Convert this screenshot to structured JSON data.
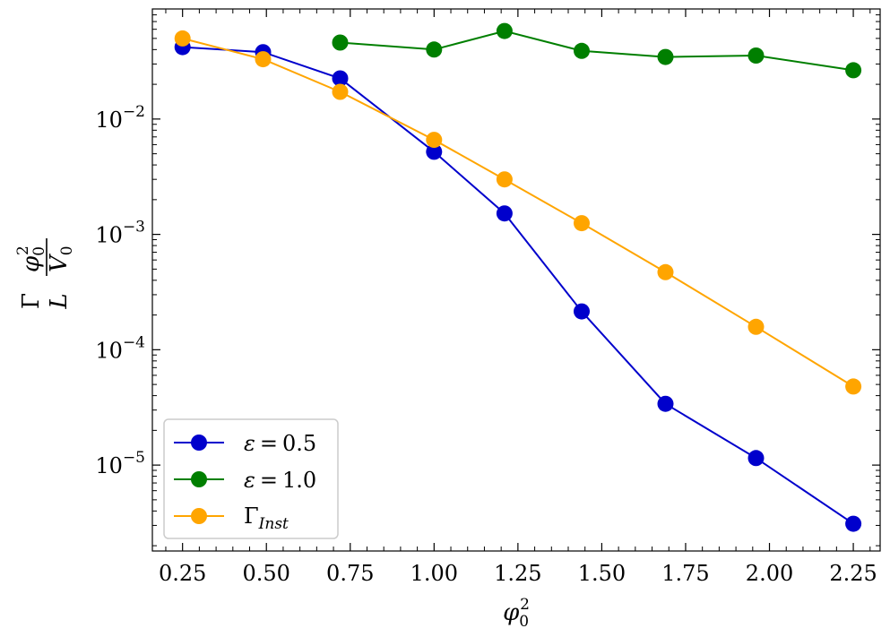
{
  "chart_data": {
    "type": "line",
    "title": "",
    "xlabel": "φ₀²",
    "ylabel": "Γ φ₀² / L V₀",
    "ylabel_parts": {
      "gamma": "Γ",
      "phi": "φ",
      "sub0": "0",
      "sup2": "2",
      "L": "L",
      "V": "V"
    },
    "yscale": "log",
    "xlim": [
      0.16,
      2.33
    ],
    "ylim": [
      1.8e-06,
      0.09
    ],
    "x_ticks": [
      0.25,
      0.5,
      0.75,
      1.0,
      1.25,
      1.5,
      1.75,
      2.0,
      2.25
    ],
    "x_tick_labels": [
      "0.25",
      "0.50",
      "0.75",
      "1.00",
      "1.25",
      "1.50",
      "1.75",
      "2.00",
      "2.25"
    ],
    "y_ticks": [
      {
        "value": 0.01,
        "base": "10",
        "exp": "−2"
      },
      {
        "value": 0.001,
        "base": "10",
        "exp": "−3"
      },
      {
        "value": 0.0001,
        "base": "10",
        "exp": "−4"
      },
      {
        "value": 1e-05,
        "base": "10",
        "exp": "−5"
      }
    ],
    "legend_position": "lower-left",
    "series": [
      {
        "name": "eps-05",
        "label": "ε = 0.5",
        "label_parts": {
          "sym": "ε",
          "eq": "=",
          "val": "0.5"
        },
        "color": "#0000cc",
        "x": [
          0.25,
          0.49,
          0.72,
          1.0,
          1.21,
          1.44,
          1.69,
          1.96,
          2.25
        ],
        "y": [
          0.042,
          0.038,
          0.0225,
          0.0052,
          0.00152,
          0.000215,
          3.4e-05,
          1.15e-05,
          3.1e-06
        ]
      },
      {
        "name": "eps-10",
        "label": "ε = 1.0",
        "label_parts": {
          "sym": "ε",
          "eq": "=",
          "val": "1.0"
        },
        "color": "#007f00",
        "x": [
          0.72,
          1.0,
          1.21,
          1.44,
          1.69,
          1.96,
          2.25
        ],
        "y": [
          0.046,
          0.04,
          0.058,
          0.039,
          0.0345,
          0.0355,
          0.0265
        ]
      },
      {
        "name": "gamma-inst",
        "label": "Γ Inst",
        "label_parts": {
          "sym": "Γ",
          "sub": "Inst"
        },
        "color": "#ffa500",
        "x": [
          0.25,
          0.49,
          0.72,
          1.0,
          1.21,
          1.44,
          1.69,
          1.96,
          2.25
        ],
        "y": [
          0.05,
          0.033,
          0.0172,
          0.0066,
          0.003,
          0.00125,
          0.00047,
          0.000158,
          4.8e-05
        ]
      }
    ]
  }
}
